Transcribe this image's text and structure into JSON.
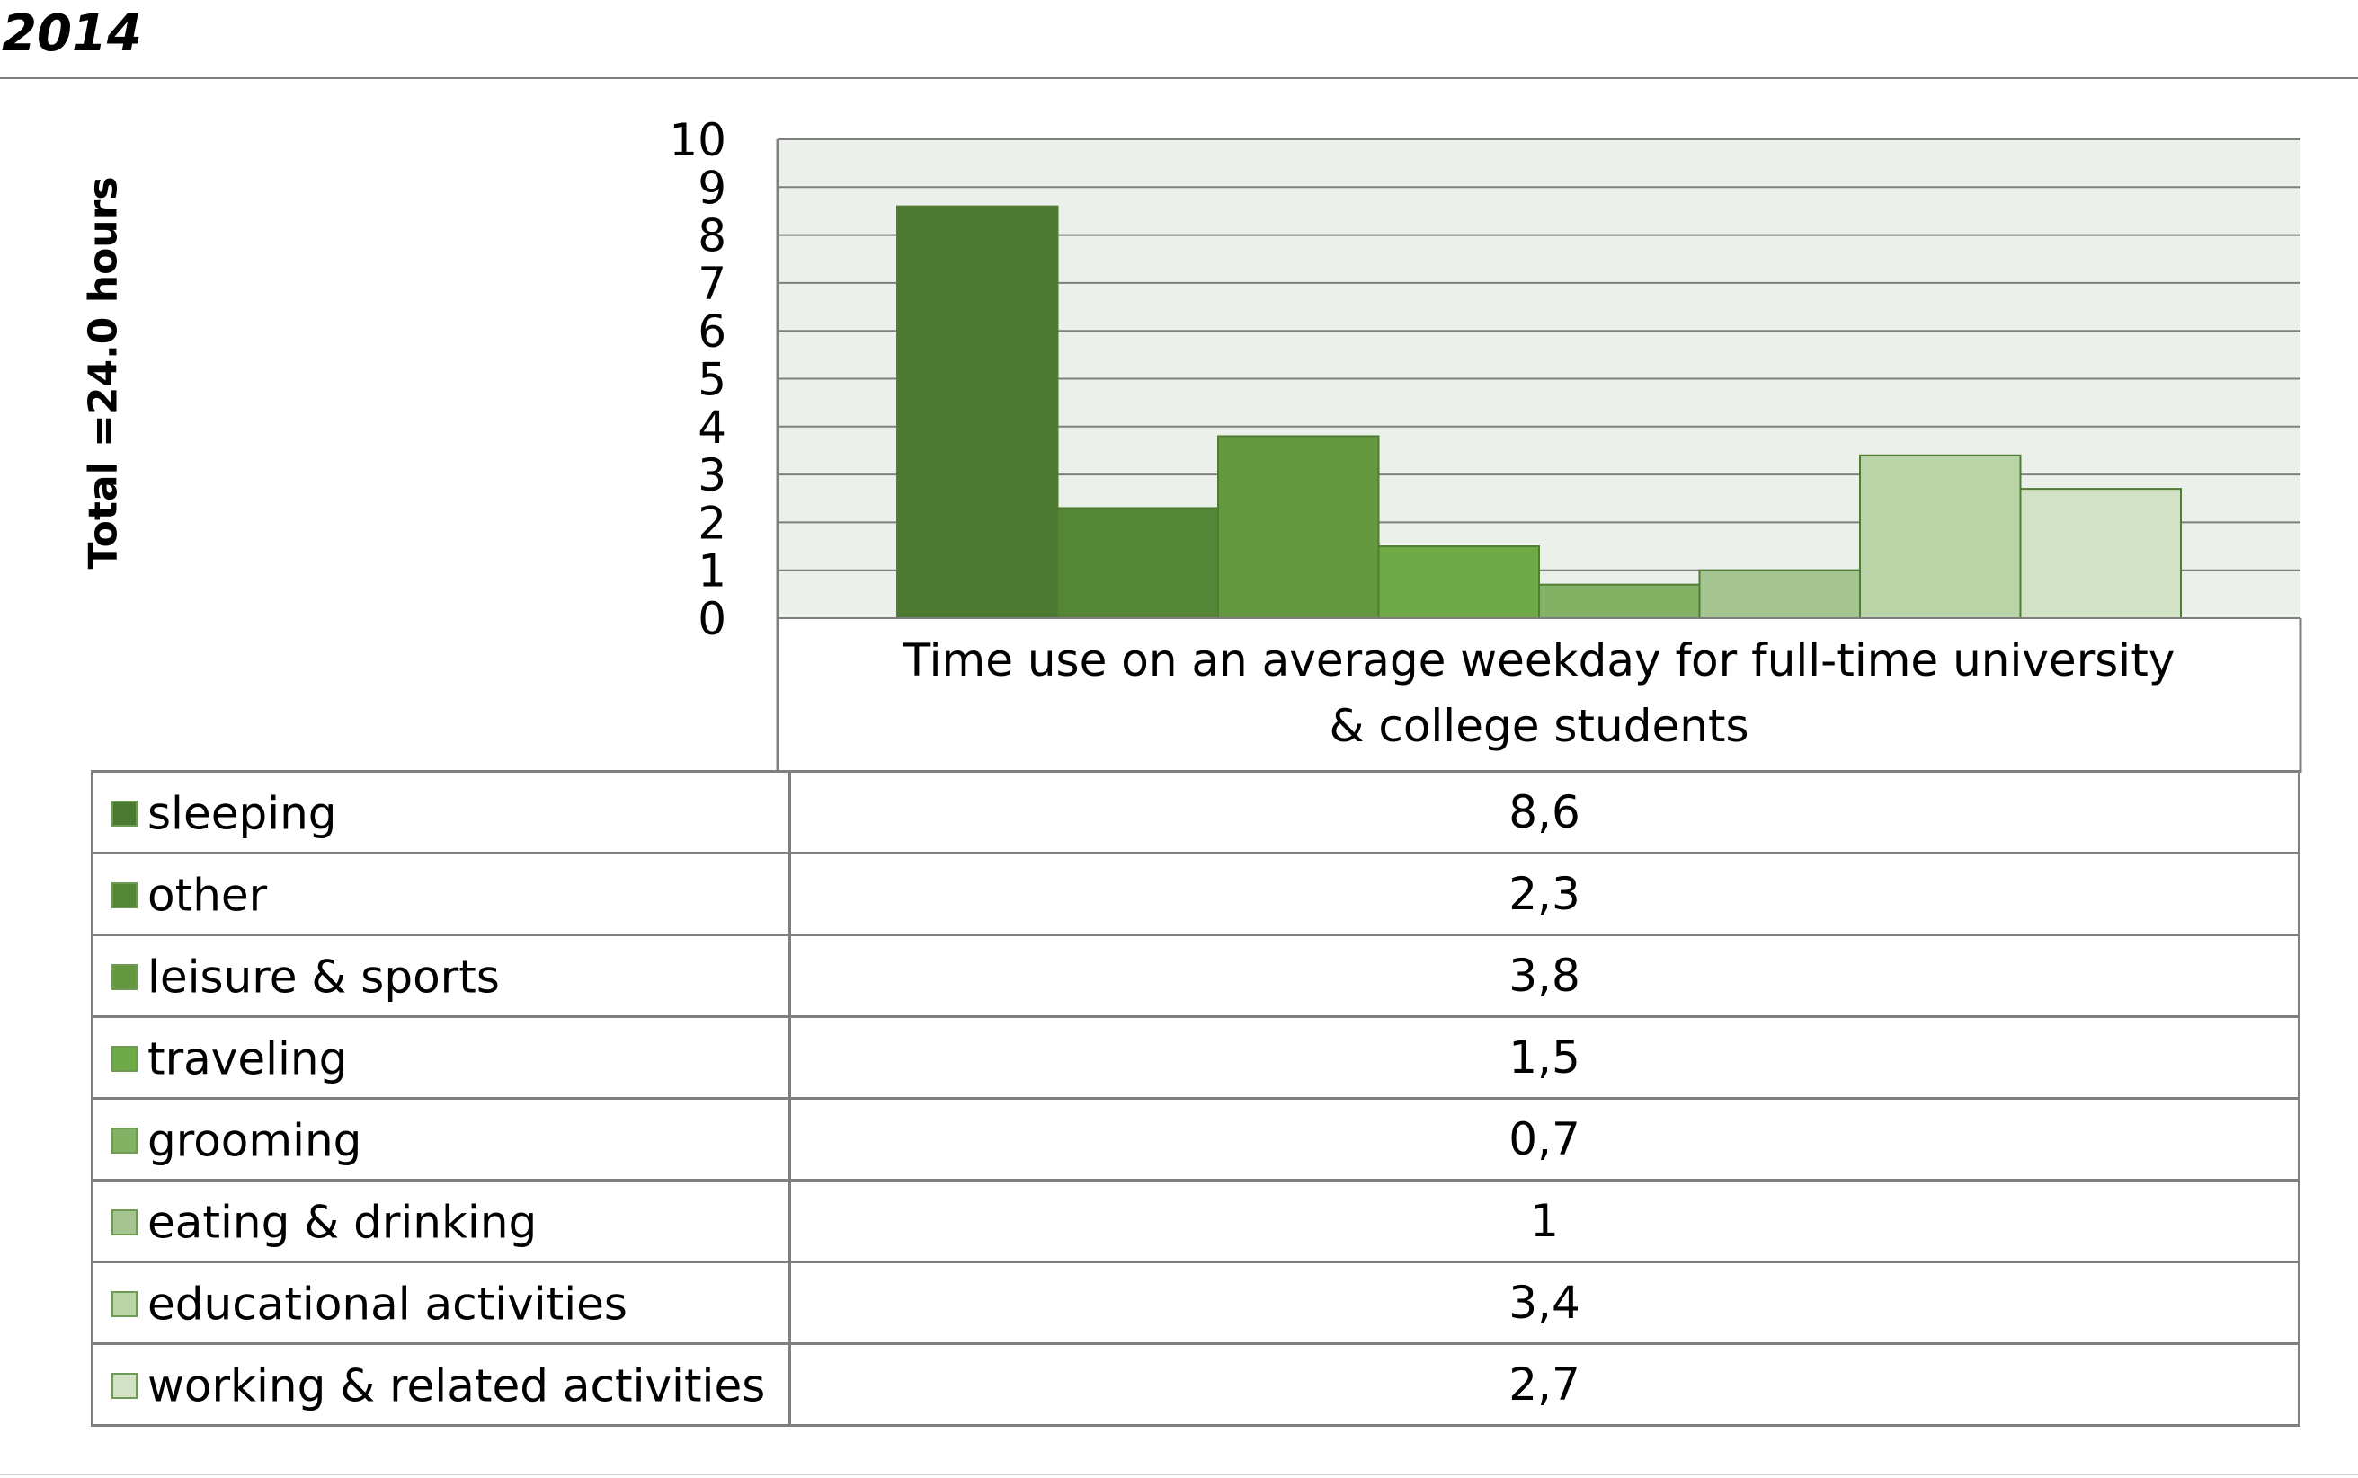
{
  "header": {
    "year": "2014"
  },
  "chart_data": {
    "type": "bar",
    "title": "",
    "category": "Time use on an average weekday for full-time university & college students",
    "category_lines": [
      "Time use on an average weekday for full-time university",
      "& college students"
    ],
    "ylabel": "Total =24.0 hours",
    "ylim": [
      0,
      10
    ],
    "yticks": [
      "0",
      "1",
      "2",
      "3",
      "4",
      "5",
      "6",
      "7",
      "8",
      "9",
      "10"
    ],
    "grid": true,
    "legend": "data-table",
    "series": [
      {
        "name": "sleeping",
        "value": 8.6,
        "label": "8,6",
        "color": "#4d7a31"
      },
      {
        "name": "other",
        "value": 2.3,
        "label": "2,3",
        "color": "#558636"
      },
      {
        "name": "leisure & sports",
        "value": 3.8,
        "label": "3,8",
        "color": "#64983e"
      },
      {
        "name": "traveling",
        "value": 1.5,
        "label": "1,5",
        "color": "#6eaa45"
      },
      {
        "name": "grooming",
        "value": 0.7,
        "label": "0,7",
        "color": "#84b264"
      },
      {
        "name": "eating & drinking",
        "value": 1,
        "label": "1",
        "color": "#a5c590"
      },
      {
        "name": "educational activities",
        "value": 3.4,
        "label": "3,4",
        "color": "#b9d5a7"
      },
      {
        "name": "working & related activities",
        "value": 2.7,
        "label": "2,7",
        "color": "#d1e2c5"
      }
    ],
    "colors": {
      "plot_background": "#ebf0ea",
      "gridline": "#7f7f7f"
    }
  }
}
